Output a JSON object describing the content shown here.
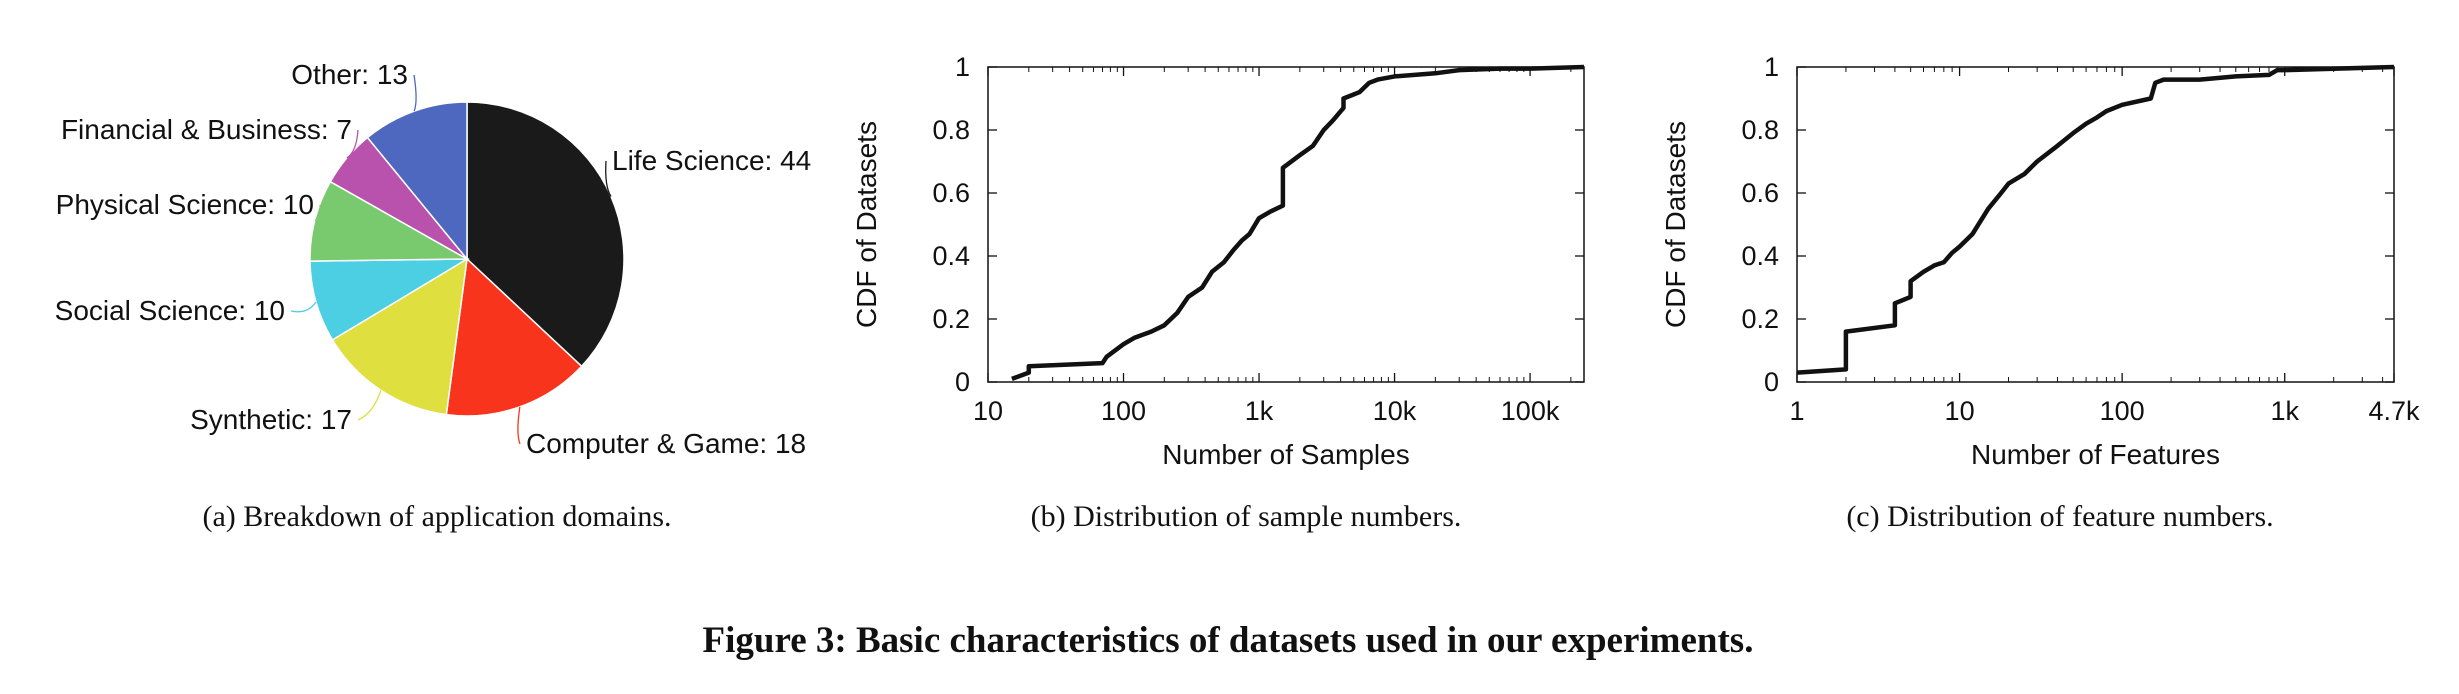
{
  "chart_data": [
    {
      "type": "pie",
      "categories": [
        "Life Science",
        "Computer & Game",
        "Synthetic",
        "Social Science",
        "Physical Science",
        "Financial & Business",
        "Other"
      ],
      "values": [
        44,
        18,
        17,
        10,
        10,
        7,
        13
      ],
      "labels": [
        "Life Science: 44",
        "Computer & Game: 18",
        "Synthetic: 17",
        "Social Science: 10",
        "Physical Science: 10",
        "Financial & Business: 7",
        "Other: 13"
      ],
      "colors": [
        "#1a1a1a",
        "#f8341c",
        "#dfe040",
        "#4ccfe2",
        "#79c96e",
        "#b852ac",
        "#4d68be"
      ],
      "caption": "(a)  Breakdown of application domains."
    },
    {
      "type": "line",
      "xscale": "log",
      "xlabel": "Number of Samples",
      "ylabel": "CDF of Datasets",
      "xlim": [
        10,
        250000
      ],
      "ylim": [
        0,
        1
      ],
      "xticks": [
        {
          "v": 10,
          "t": "10"
        },
        {
          "v": 100,
          "t": "100"
        },
        {
          "v": 1000,
          "t": "1k"
        },
        {
          "v": 10000,
          "t": "10k"
        },
        {
          "v": 100000,
          "t": "100k"
        }
      ],
      "yticks": [
        {
          "v": 0,
          "t": "0"
        },
        {
          "v": 0.2,
          "t": "0.2"
        },
        {
          "v": 0.4,
          "t": "0.4"
        },
        {
          "v": 0.6,
          "t": "0.6"
        },
        {
          "v": 0.8,
          "t": "0.8"
        },
        {
          "v": 1,
          "t": "1"
        }
      ],
      "series": [
        {
          "x": [
            15,
            20,
            20,
            70,
            75,
            100,
            120,
            160,
            200,
            250,
            300,
            380,
            450,
            550,
            650,
            750,
            850,
            1000,
            1200,
            1500,
            1500,
            2000,
            2500,
            3000,
            3500,
            4200,
            4200,
            5500,
            6500,
            7500,
            10000,
            20000,
            30000,
            60000,
            100000,
            250000
          ],
          "y": [
            0.01,
            0.03,
            0.05,
            0.06,
            0.08,
            0.12,
            0.14,
            0.16,
            0.18,
            0.22,
            0.27,
            0.3,
            0.35,
            0.38,
            0.42,
            0.45,
            0.47,
            0.52,
            0.54,
            0.56,
            0.68,
            0.72,
            0.75,
            0.8,
            0.83,
            0.87,
            0.9,
            0.92,
            0.95,
            0.96,
            0.97,
            0.98,
            0.99,
            0.995,
            0.995,
            1.0
          ]
        }
      ],
      "caption": "(b)  Distribution of sample numbers."
    },
    {
      "type": "line",
      "xscale": "log",
      "xlabel": "Number of Features",
      "ylabel": "CDF of Datasets",
      "xlim": [
        1,
        4700
      ],
      "ylim": [
        0,
        1
      ],
      "xticks": [
        {
          "v": 1,
          "t": "1"
        },
        {
          "v": 10,
          "t": "10"
        },
        {
          "v": 100,
          "t": "100"
        },
        {
          "v": 1000,
          "t": "1k"
        },
        {
          "v": 4700,
          "t": "4.7k"
        }
      ],
      "yticks": [
        {
          "v": 0,
          "t": "0"
        },
        {
          "v": 0.2,
          "t": "0.2"
        },
        {
          "v": 0.4,
          "t": "0.4"
        },
        {
          "v": 0.6,
          "t": "0.6"
        },
        {
          "v": 0.8,
          "t": "0.8"
        },
        {
          "v": 1,
          "t": "1"
        }
      ],
      "series": [
        {
          "x": [
            1,
            2,
            2,
            4,
            4,
            5,
            5,
            6,
            7,
            8,
            9,
            10,
            12,
            15,
            18,
            20,
            25,
            30,
            40,
            50,
            60,
            70,
            80,
            100,
            150,
            160,
            180,
            200,
            300,
            500,
            800,
            900,
            1000,
            4700
          ],
          "y": [
            0.03,
            0.04,
            0.16,
            0.18,
            0.25,
            0.27,
            0.32,
            0.35,
            0.37,
            0.38,
            0.41,
            0.43,
            0.47,
            0.55,
            0.6,
            0.63,
            0.66,
            0.7,
            0.75,
            0.79,
            0.82,
            0.84,
            0.86,
            0.88,
            0.9,
            0.95,
            0.96,
            0.96,
            0.96,
            0.97,
            0.975,
            0.99,
            0.99,
            1.0
          ]
        }
      ],
      "caption": "(c)  Distribution of feature numbers."
    }
  ],
  "figure_caption": "Figure 3: Basic characteristics of datasets used in our experiments."
}
